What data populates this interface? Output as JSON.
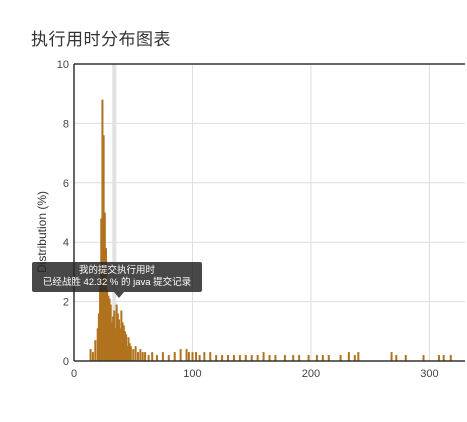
{
  "page": {
    "title": "执行用时分布图表"
  },
  "tooltip": {
    "line1": "我的提交执行用时",
    "line2": "已经战胜 42.32 % 的 java 提交记录"
  },
  "colors": {
    "bar": "#b0721c",
    "grid": "#dddddd",
    "axis": "#333333",
    "highlight": "#e2e2e2"
  },
  "chart_data": {
    "type": "bar",
    "title": "执行用时分布图表",
    "xlabel": "",
    "ylabel": "Distribution (%)",
    "xlim": [
      0,
      330
    ],
    "ylim": [
      0,
      10
    ],
    "xticks": [
      0,
      100,
      200,
      300
    ],
    "yticks": [
      0,
      2,
      4,
      6,
      8,
      10
    ],
    "grid": true,
    "highlight_x": 34,
    "bin_width": 1,
    "x": [
      14,
      16,
      18,
      20,
      21,
      22,
      23,
      24,
      25,
      26,
      27,
      28,
      29,
      30,
      31,
      32,
      33,
      34,
      35,
      36,
      37,
      38,
      39,
      40,
      41,
      42,
      43,
      44,
      45,
      46,
      47,
      48,
      50,
      52,
      54,
      56,
      58,
      60,
      63,
      66,
      70,
      75,
      80,
      85,
      90,
      95,
      97,
      100,
      103,
      106,
      110,
      115,
      120,
      125,
      130,
      135,
      140,
      145,
      150,
      155,
      160,
      165,
      170,
      178,
      185,
      190,
      198,
      205,
      210,
      215,
      225,
      232,
      237,
      240,
      268,
      272,
      280,
      295,
      308,
      312,
      318
    ],
    "values": [
      0.4,
      0.3,
      0.7,
      1.1,
      1.6,
      2.8,
      4.8,
      8.8,
      7.6,
      5.0,
      3.8,
      2.4,
      2.2,
      2.1,
      1.9,
      1.3,
      1.5,
      1.7,
      1.1,
      1.9,
      1.6,
      1.4,
      1.1,
      1.7,
      1.3,
      1.2,
      1.0,
      0.9,
      0.5,
      0.8,
      0.6,
      0.5,
      0.4,
      0.5,
      0.3,
      0.4,
      0.3,
      0.3,
      0.2,
      0.3,
      0.2,
      0.3,
      0.2,
      0.3,
      0.4,
      0.4,
      0.3,
      0.3,
      0.3,
      0.2,
      0.3,
      0.3,
      0.2,
      0.2,
      0.2,
      0.2,
      0.2,
      0.2,
      0.2,
      0.2,
      0.3,
      0.2,
      0.2,
      0.2,
      0.2,
      0.2,
      0.2,
      0.2,
      0.2,
      0.2,
      0.2,
      0.3,
      0.2,
      0.3,
      0.3,
      0.2,
      0.2,
      0.2,
      0.2,
      0.2,
      0.2
    ]
  }
}
